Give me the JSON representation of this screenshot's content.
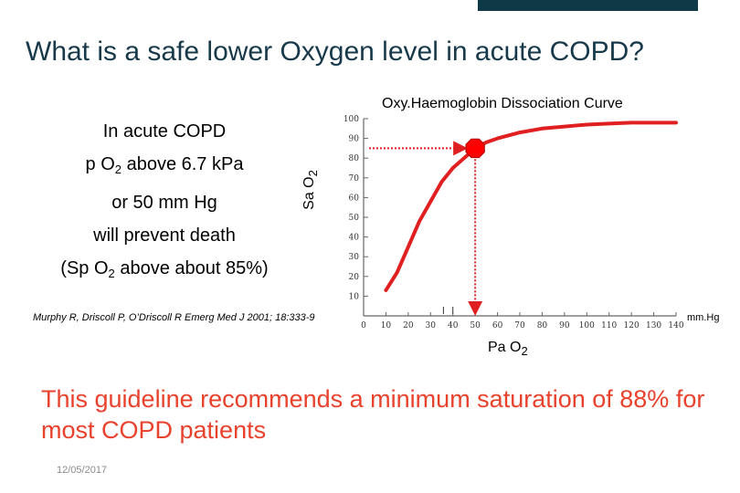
{
  "slide": {
    "title": "What is a safe lower Oxygen level in acute COPD?",
    "left_lines": [
      {
        "main": "In acute COPD",
        "sub": "",
        "rest": ""
      },
      {
        "main": "p O",
        "sub": "2",
        "rest": " above 6.7 kPa"
      },
      {
        "main": "or 50 mm Hg",
        "sub": "",
        "rest": ""
      },
      {
        "main": "will prevent death",
        "sub": "",
        "rest": ""
      },
      {
        "main": "(Sp O",
        "sub": "2",
        "rest": " above about 85%)"
      }
    ],
    "citation": "Murphy R, Driscoll P, O’Driscoll R Emerg Med J 2001; 18:333-9",
    "recommendation": "This guideline recommends a minimum  saturation of 88% for most COPD patients",
    "date": "12/05/2017",
    "colors": {
      "title": "#17394a",
      "curve": "#e02020",
      "recommendation": "#e8412c",
      "topbar": "#0e3a47"
    }
  },
  "chart_data": {
    "type": "line",
    "title": "Oxy.Haemoglobin Dissociation Curve",
    "ylabel_main": "Sa O",
    "ylabel_sub": "2",
    "xlabel_main": "Pa O",
    "xlabel_sub": "2",
    "x_unit": "mm.Hg",
    "xlim": [
      0,
      140
    ],
    "ylim": [
      0,
      100
    ],
    "x_ticks": [
      "0",
      "10",
      "20",
      "30",
      "40",
      "50",
      "60",
      "70",
      "80",
      "90",
      "100",
      "110",
      "120",
      "130",
      "140"
    ],
    "y_ticks": [
      "10",
      "20",
      "30",
      "40",
      "50",
      "60",
      "70",
      "80",
      "90",
      "100"
    ],
    "series": [
      {
        "x": [
          10,
          15,
          20,
          25,
          30,
          35,
          40,
          45,
          50,
          55,
          60,
          70,
          80,
          90,
          100,
          110,
          120,
          130,
          140
        ],
        "y": [
          13,
          22,
          35,
          48,
          58,
          68,
          75,
          80,
          85,
          88,
          90,
          93,
          95,
          96,
          97,
          97.5,
          98,
          98,
          98
        ]
      }
    ],
    "marker": {
      "x": 50,
      "y": 85
    },
    "grid": false
  }
}
